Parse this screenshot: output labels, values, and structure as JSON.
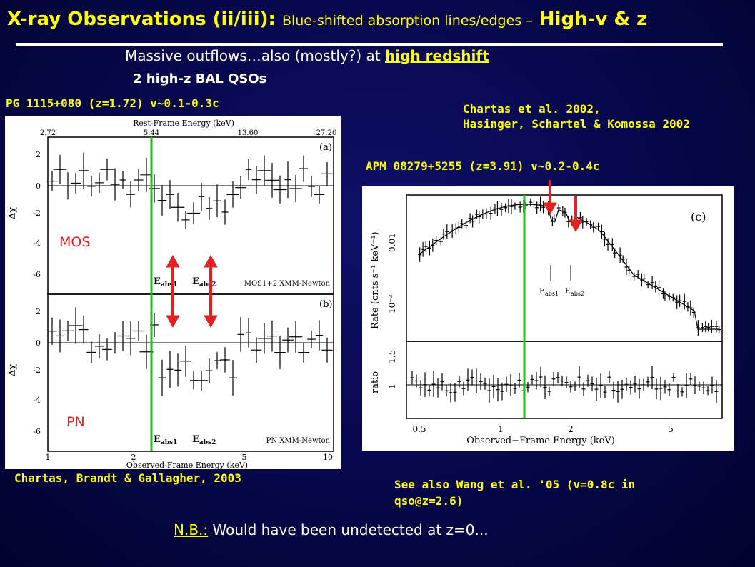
{
  "title": {
    "main": "X-ray Observations (ii/iii):",
    "sub": "Blue-shifted absorption lines/edges –",
    "tail": "High-v & z"
  },
  "intro": {
    "text": "Massive outflows…also (mostly?) at",
    "highlight": "high redshift"
  },
  "subheading": "2 high-z BAL QSOs",
  "left_object": "PG 1115+080 (z=1.72) v~0.1-0.3c",
  "right_refs": [
    "Chartas et al. 2002,",
    "Hasinger, Schartel & Komossa 2002"
  ],
  "right_object": "APM 08279+5255 (z=3.91)  v~0.2-0.4c",
  "left_ref": "Chartas, Brandt & Gallagher, 2003",
  "see_also": [
    "See also Wang et al. '05 (v=0.8c in",
    "qso@z=2.6)"
  ],
  "footer": {
    "nb": "N.B.:",
    "text": " Would have been undetected at z=0..."
  },
  "labels": {
    "mos": "MOS",
    "pn": "PN"
  },
  "left_plot": {
    "top_axis_label": "Rest-Frame Energy (keV)",
    "top_ticks": [
      "2.72",
      "5.44",
      "13.60",
      "27.20"
    ],
    "bottom_axis_label": "Observed-Frame Energy (keV)",
    "bottom_ticks": [
      "1",
      "2",
      "5",
      "10"
    ],
    "ylabel": "Δχ",
    "y_ticks": [
      "2",
      "0",
      "-2",
      "-4",
      "-6"
    ],
    "panel_a": {
      "tag": "(a)",
      "instrument": "MOS1+2 XMM-Newton",
      "eabs1": "E",
      "eabs1_sub": "abs1",
      "eabs2": "E",
      "eabs2_sub": "abs2"
    },
    "panel_b": {
      "tag": "(b)",
      "instrument": "PN XMM-Newton",
      "eabs1": "E",
      "eabs1_sub": "abs1",
      "eabs2": "E",
      "eabs2_sub": "abs2"
    }
  },
  "right_plot": {
    "tag": "(c)",
    "ylabel_top": "Rate (cnts s⁻¹ keV⁻¹)",
    "ylabel_bottom": "ratio",
    "top_ticks": [
      "0.01",
      "10⁻³"
    ],
    "ratio_ticks": [
      "1.5",
      "1"
    ],
    "x_ticks": [
      "0.5",
      "1",
      "2",
      "5"
    ],
    "xlabel": "Observed−Frame Energy (keV)",
    "eabs1": "E",
    "eabs1_sub": "abs1",
    "eabs2": "E",
    "eabs2_sub": "abs2"
  },
  "colors": {
    "accent": "#ffff00",
    "marker": "#e52020",
    "guide": "#22bb22",
    "background": "#07074a"
  }
}
